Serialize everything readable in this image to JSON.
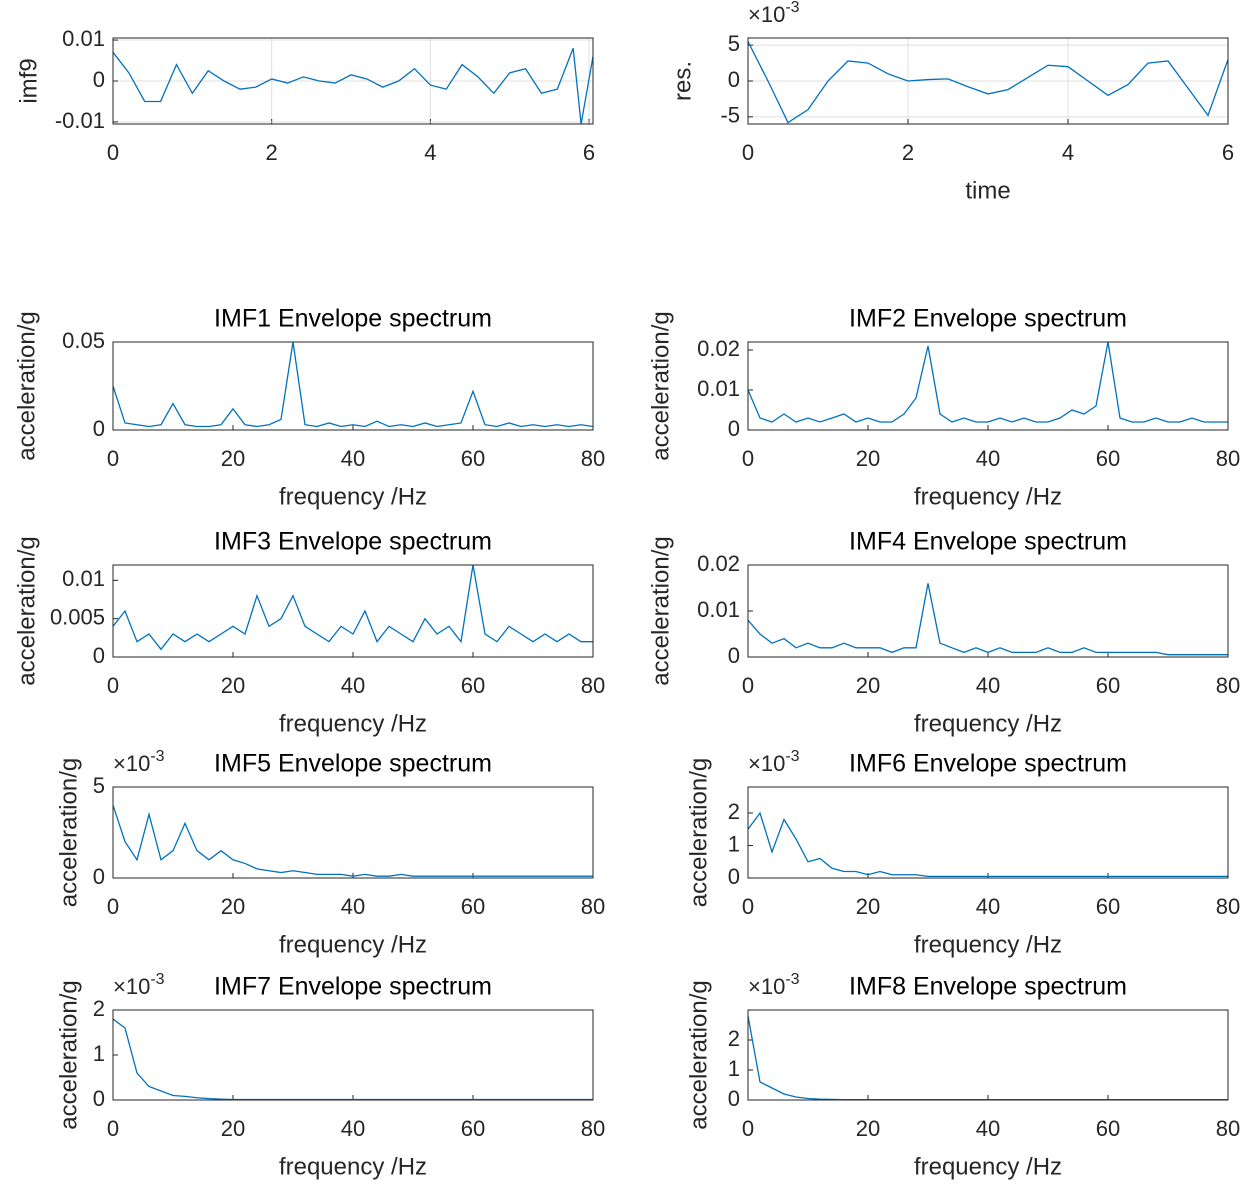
{
  "chart_data": [
    {
      "type": "line",
      "ylabel": "imf9",
      "xlim": [
        0,
        6.05
      ],
      "xticks": [
        0,
        2,
        4,
        6
      ],
      "ylim": [
        -0.0105,
        0.0105
      ],
      "yticks": [
        -0.01,
        0,
        0.01
      ],
      "grid": true,
      "color": "#0072bd",
      "x": [
        0,
        0.2,
        0.4,
        0.6,
        0.8,
        1.0,
        1.2,
        1.4,
        1.6,
        1.8,
        2.0,
        2.2,
        2.4,
        2.6,
        2.8,
        3.0,
        3.2,
        3.4,
        3.6,
        3.8,
        4.0,
        4.2,
        4.4,
        4.6,
        4.8,
        5.0,
        5.2,
        5.4,
        5.6,
        5.8,
        5.9,
        6.05
      ],
      "values": [
        0.007,
        0.002,
        -0.005,
        -0.005,
        0.004,
        -0.003,
        0.0025,
        0,
        -0.002,
        -0.0015,
        0.0005,
        -0.0005,
        0.001,
        0,
        -0.0005,
        0.0015,
        0.0005,
        -0.0015,
        0,
        0.003,
        -0.001,
        -0.002,
        0.004,
        0.001,
        -0.003,
        0.002,
        0.003,
        -0.003,
        -0.002,
        0.008,
        -0.0105,
        0.006
      ]
    },
    {
      "type": "line",
      "ylabel": "res.",
      "xlabel": "time",
      "y_multiplier": "×10",
      "y_exponent": "-3",
      "xlim": [
        0,
        6
      ],
      "xticks": [
        0,
        2,
        4,
        6
      ],
      "ylim": [
        -0.006,
        0.006
      ],
      "yticks": [
        {
          "value": -0.005,
          "label": "-5"
        },
        0,
        {
          "value": 0.005,
          "label": "5"
        }
      ],
      "grid": true,
      "color": "#0072bd",
      "x": [
        0,
        0.25,
        0.5,
        0.75,
        1.0,
        1.25,
        1.5,
        1.75,
        2.0,
        2.25,
        2.5,
        2.75,
        3.0,
        3.25,
        3.5,
        3.75,
        4.0,
        4.25,
        4.5,
        4.75,
        5.0,
        5.25,
        5.5,
        5.75,
        6.0
      ],
      "values": [
        0.0055,
        0,
        -0.0058,
        -0.004,
        0,
        0.0028,
        0.0025,
        0.001,
        0,
        0.0002,
        0.0003,
        -0.0008,
        -0.0018,
        -0.0012,
        0.0005,
        0.0022,
        0.002,
        0,
        -0.002,
        -0.0005,
        0.0025,
        0.0028,
        -0.001,
        -0.0048,
        0.003
      ]
    },
    {
      "type": "line",
      "title": "IMF1 Envelope spectrum",
      "ylabel": "acceleration/g",
      "xlabel": "frequency /Hz",
      "xlim": [
        0,
        80
      ],
      "xticks": [
        0,
        20,
        40,
        60,
        80
      ],
      "ylim": [
        0,
        0.05
      ],
      "yticks": [
        0,
        0.05
      ],
      "grid": false,
      "color": "#0072bd",
      "x": [
        0,
        2,
        4,
        6,
        8,
        10,
        12,
        14,
        16,
        18,
        20,
        22,
        24,
        26,
        28,
        30,
        32,
        34,
        36,
        38,
        40,
        42,
        44,
        46,
        48,
        50,
        52,
        54,
        56,
        58,
        60,
        62,
        64,
        66,
        68,
        70,
        72,
        74,
        76,
        78,
        80
      ],
      "values": [
        0.025,
        0.004,
        0.003,
        0.002,
        0.003,
        0.015,
        0.003,
        0.002,
        0.002,
        0.003,
        0.012,
        0.003,
        0.002,
        0.003,
        0.006,
        0.05,
        0.003,
        0.002,
        0.004,
        0.002,
        0.003,
        0.002,
        0.005,
        0.002,
        0.003,
        0.002,
        0.004,
        0.002,
        0.003,
        0.004,
        0.022,
        0.003,
        0.002,
        0.004,
        0.002,
        0.003,
        0.002,
        0.003,
        0.002,
        0.003,
        0.002
      ]
    },
    {
      "type": "line",
      "title": "IMF2 Envelope spectrum",
      "ylabel": "acceleration/g",
      "xlabel": "frequency /Hz",
      "xlim": [
        0,
        80
      ],
      "xticks": [
        0,
        20,
        40,
        60,
        80
      ],
      "ylim": [
        0,
        0.022
      ],
      "yticks": [
        0,
        0.01,
        0.02
      ],
      "grid": false,
      "color": "#0072bd",
      "x": [
        0,
        2,
        4,
        6,
        8,
        10,
        12,
        14,
        16,
        18,
        20,
        22,
        24,
        26,
        28,
        30,
        32,
        34,
        36,
        38,
        40,
        42,
        44,
        46,
        48,
        50,
        52,
        54,
        56,
        58,
        60,
        62,
        64,
        66,
        68,
        70,
        72,
        74,
        76,
        78,
        80
      ],
      "values": [
        0.01,
        0.003,
        0.002,
        0.004,
        0.002,
        0.003,
        0.002,
        0.003,
        0.004,
        0.002,
        0.003,
        0.002,
        0.002,
        0.004,
        0.008,
        0.021,
        0.004,
        0.002,
        0.003,
        0.002,
        0.002,
        0.003,
        0.002,
        0.003,
        0.002,
        0.002,
        0.003,
        0.005,
        0.004,
        0.006,
        0.022,
        0.003,
        0.002,
        0.002,
        0.003,
        0.002,
        0.002,
        0.003,
        0.002,
        0.002,
        0.002
      ]
    },
    {
      "type": "line",
      "title": "IMF3 Envelope spectrum",
      "ylabel": "acceleration/g",
      "xlabel": "frequency /Hz",
      "xlim": [
        0,
        80
      ],
      "xticks": [
        0,
        20,
        40,
        60,
        80
      ],
      "ylim": [
        0,
        0.012
      ],
      "yticks": [
        0,
        0.005,
        0.01
      ],
      "grid": false,
      "color": "#0072bd",
      "x": [
        0,
        2,
        4,
        6,
        8,
        10,
        12,
        14,
        16,
        18,
        20,
        22,
        24,
        26,
        28,
        30,
        32,
        34,
        36,
        38,
        40,
        42,
        44,
        46,
        48,
        50,
        52,
        54,
        56,
        58,
        60,
        62,
        64,
        66,
        68,
        70,
        72,
        74,
        76,
        78,
        80
      ],
      "values": [
        0.004,
        0.006,
        0.002,
        0.003,
        0.001,
        0.003,
        0.002,
        0.003,
        0.002,
        0.003,
        0.004,
        0.003,
        0.008,
        0.004,
        0.005,
        0.008,
        0.004,
        0.003,
        0.002,
        0.004,
        0.003,
        0.006,
        0.002,
        0.004,
        0.003,
        0.002,
        0.005,
        0.003,
        0.004,
        0.002,
        0.012,
        0.003,
        0.002,
        0.004,
        0.003,
        0.002,
        0.003,
        0.002,
        0.003,
        0.002,
        0.002
      ]
    },
    {
      "type": "line",
      "title": "IMF4 Envelope spectrum",
      "ylabel": "acceleration/g",
      "xlabel": "frequency /Hz",
      "xlim": [
        0,
        80
      ],
      "xticks": [
        0,
        20,
        40,
        60,
        80
      ],
      "ylim": [
        0,
        0.02
      ],
      "yticks": [
        0,
        0.01,
        0.02
      ],
      "grid": false,
      "color": "#0072bd",
      "x": [
        0,
        2,
        4,
        6,
        8,
        10,
        12,
        14,
        16,
        18,
        20,
        22,
        24,
        26,
        28,
        30,
        32,
        34,
        36,
        38,
        40,
        42,
        44,
        46,
        48,
        50,
        52,
        54,
        56,
        58,
        60,
        62,
        64,
        66,
        68,
        70,
        72,
        74,
        76,
        78,
        80
      ],
      "values": [
        0.008,
        0.005,
        0.003,
        0.004,
        0.002,
        0.003,
        0.002,
        0.002,
        0.003,
        0.002,
        0.002,
        0.002,
        0.001,
        0.002,
        0.002,
        0.016,
        0.003,
        0.002,
        0.001,
        0.002,
        0.001,
        0.002,
        0.001,
        0.001,
        0.001,
        0.002,
        0.001,
        0.001,
        0.002,
        0.001,
        0.001,
        0.001,
        0.001,
        0.001,
        0.001,
        0.0005,
        0.0005,
        0.0005,
        0.0005,
        0.0005,
        0.0005
      ]
    },
    {
      "type": "line",
      "title": "IMF5 Envelope spectrum",
      "ylabel": "acceleration/g",
      "xlabel": "frequency /Hz",
      "y_multiplier": "×10",
      "y_exponent": "-3",
      "xlim": [
        0,
        80
      ],
      "xticks": [
        0,
        20,
        40,
        60,
        80
      ],
      "ylim": [
        0,
        0.005
      ],
      "yticks": [
        0,
        {
          "value": 0.005,
          "label": "5"
        }
      ],
      "grid": false,
      "color": "#0072bd",
      "x": [
        0,
        2,
        4,
        6,
        8,
        10,
        12,
        14,
        16,
        18,
        20,
        22,
        24,
        26,
        28,
        30,
        32,
        34,
        36,
        38,
        40,
        42,
        44,
        46,
        48,
        50,
        52,
        54,
        56,
        58,
        60,
        62,
        64,
        66,
        68,
        70,
        72,
        74,
        76,
        78,
        80
      ],
      "values": [
        0.004,
        0.002,
        0.001,
        0.0035,
        0.001,
        0.0015,
        0.003,
        0.0015,
        0.001,
        0.0015,
        0.001,
        0.0008,
        0.0005,
        0.0004,
        0.0003,
        0.0004,
        0.0003,
        0.0002,
        0.0002,
        0.0002,
        0.0001,
        0.0002,
        0.0001,
        0.0001,
        0.0002,
        0.0001,
        0.0001,
        0.0001,
        0.0001,
        0.0001,
        0.0001,
        0.0001,
        0.0001,
        0.0001,
        0.0001,
        0.0001,
        0.0001,
        0.0001,
        0.0001,
        0.0001,
        0.0001
      ]
    },
    {
      "type": "line",
      "title": "IMF6 Envelope spectrum",
      "ylabel": "acceleration/g",
      "xlabel": "frequency /Hz",
      "y_multiplier": "×10",
      "y_exponent": "-3",
      "xlim": [
        0,
        80
      ],
      "xticks": [
        0,
        20,
        40,
        60,
        80
      ],
      "ylim": [
        0,
        0.0028
      ],
      "yticks": [
        0,
        {
          "value": 0.001,
          "label": "1"
        },
        {
          "value": 0.002,
          "label": "2"
        }
      ],
      "grid": false,
      "color": "#0072bd",
      "x": [
        0,
        2,
        4,
        6,
        8,
        10,
        12,
        14,
        16,
        18,
        20,
        22,
        24,
        26,
        28,
        30,
        32,
        34,
        36,
        38,
        40,
        42,
        44,
        46,
        48,
        50,
        52,
        54,
        56,
        58,
        60,
        62,
        64,
        66,
        68,
        70,
        72,
        74,
        76,
        78,
        80
      ],
      "values": [
        0.0015,
        0.002,
        0.0008,
        0.0018,
        0.0012,
        0.0005,
        0.0006,
        0.0003,
        0.0002,
        0.0002,
        0.0001,
        0.0002,
        0.0001,
        0.0001,
        0.0001,
        5e-05,
        5e-05,
        5e-05,
        5e-05,
        5e-05,
        5e-05,
        5e-05,
        5e-05,
        5e-05,
        5e-05,
        5e-05,
        5e-05,
        5e-05,
        5e-05,
        5e-05,
        5e-05,
        5e-05,
        5e-05,
        5e-05,
        5e-05,
        5e-05,
        5e-05,
        5e-05,
        5e-05,
        5e-05,
        5e-05
      ]
    },
    {
      "type": "line",
      "title": "IMF7 Envelope spectrum",
      "ylabel": "acceleration/g",
      "xlabel": "frequency /Hz",
      "y_multiplier": "×10",
      "y_exponent": "-3",
      "xlim": [
        0,
        80
      ],
      "xticks": [
        0,
        20,
        40,
        60,
        80
      ],
      "ylim": [
        0,
        0.002
      ],
      "yticks": [
        0,
        {
          "value": 0.001,
          "label": "1"
        },
        {
          "value": 0.002,
          "label": "2"
        }
      ],
      "grid": false,
      "color": "#0072bd",
      "x": [
        0,
        2,
        4,
        6,
        8,
        10,
        12,
        14,
        16,
        18,
        20,
        22,
        24,
        26,
        28,
        30,
        32,
        34,
        36,
        38,
        40,
        42,
        44,
        46,
        48,
        50,
        52,
        54,
        56,
        58,
        60,
        62,
        64,
        66,
        68,
        70,
        72,
        74,
        76,
        78,
        80
      ],
      "values": [
        0.0018,
        0.0016,
        0.0006,
        0.0003,
        0.0002,
        0.0001,
        8e-05,
        5e-05,
        3e-05,
        2e-05,
        1e-05,
        1e-05,
        1e-05,
        1e-05,
        1e-05,
        1e-05,
        1e-05,
        1e-05,
        1e-05,
        1e-05,
        1e-05,
        1e-05,
        1e-05,
        1e-05,
        1e-05,
        1e-05,
        1e-05,
        1e-05,
        1e-05,
        1e-05,
        1e-05,
        1e-05,
        1e-05,
        1e-05,
        1e-05,
        1e-05,
        1e-05,
        1e-05,
        1e-05,
        1e-05,
        1e-05
      ]
    },
    {
      "type": "line",
      "title": "IMF8 Envelope spectrum",
      "ylabel": "acceleration/g",
      "xlabel": "frequency /Hz",
      "y_multiplier": "×10",
      "y_exponent": "-3",
      "xlim": [
        0,
        80
      ],
      "xticks": [
        0,
        20,
        40,
        60,
        80
      ],
      "ylim": [
        0,
        0.003
      ],
      "yticks": [
        0,
        {
          "value": 0.001,
          "label": "1"
        },
        {
          "value": 0.002,
          "label": "2"
        }
      ],
      "grid": false,
      "color": "#0072bd",
      "x": [
        0,
        2,
        4,
        6,
        8,
        10,
        12,
        14,
        16,
        18,
        20,
        22,
        24,
        26,
        28,
        30,
        32,
        34,
        36,
        38,
        40,
        42,
        44,
        46,
        48,
        50,
        52,
        54,
        56,
        58,
        60,
        62,
        64,
        66,
        68,
        70,
        72,
        74,
        76,
        78,
        80
      ],
      "values": [
        0.0028,
        0.0006,
        0.0004,
        0.0002,
        0.0001,
        5e-05,
        3e-05,
        2e-05,
        1e-05,
        1e-05,
        1e-05,
        1e-05,
        1e-05,
        1e-05,
        1e-05,
        1e-05,
        1e-05,
        1e-05,
        1e-05,
        1e-05,
        1e-05,
        1e-05,
        1e-05,
        1e-05,
        1e-05,
        1e-05,
        1e-05,
        1e-05,
        1e-05,
        1e-05,
        1e-05,
        1e-05,
        1e-05,
        1e-05,
        1e-05,
        1e-05,
        1e-05,
        1e-05,
        1e-05,
        1e-05,
        1e-05
      ]
    }
  ]
}
